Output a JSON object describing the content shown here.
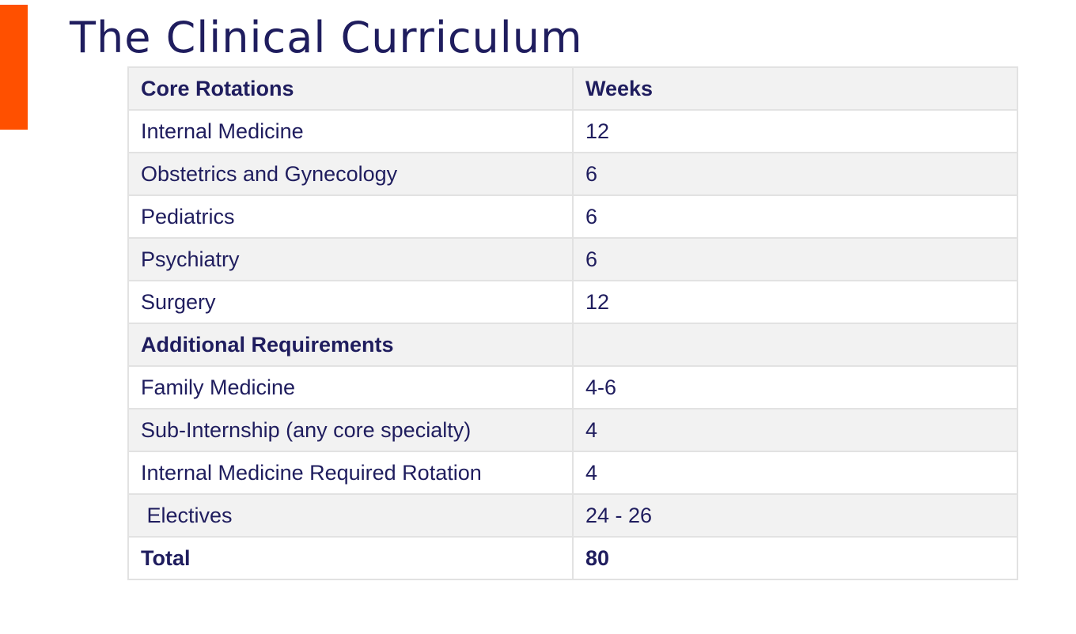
{
  "slide": {
    "title": "The Clinical Curriculum",
    "accent_color": "#ff5000",
    "title_color": "#1f1d5e"
  },
  "table": {
    "header": {
      "rotation": "Core Rotations",
      "weeks": "Weeks"
    },
    "rows": [
      {
        "rotation": "Internal Medicine",
        "weeks": "12"
      },
      {
        "rotation": "Obstetrics and Gynecology",
        "weeks": "6"
      },
      {
        "rotation": "Pediatrics",
        "weeks": "6"
      },
      {
        "rotation": "Psychiatry",
        "weeks": "6"
      },
      {
        "rotation": "Surgery",
        "weeks": "12"
      },
      {
        "rotation": "Additional Requirements",
        "weeks": ""
      },
      {
        "rotation": "Family Medicine",
        "weeks": "4-6"
      },
      {
        "rotation": "Sub-Internship (any core specialty)",
        "weeks": "4"
      },
      {
        "rotation": "Internal Medicine Required Rotation",
        "weeks": "4"
      },
      {
        "rotation": " Electives",
        "weeks": "24 - 26"
      }
    ],
    "total": {
      "rotation": "Total",
      "weeks": "80"
    }
  }
}
